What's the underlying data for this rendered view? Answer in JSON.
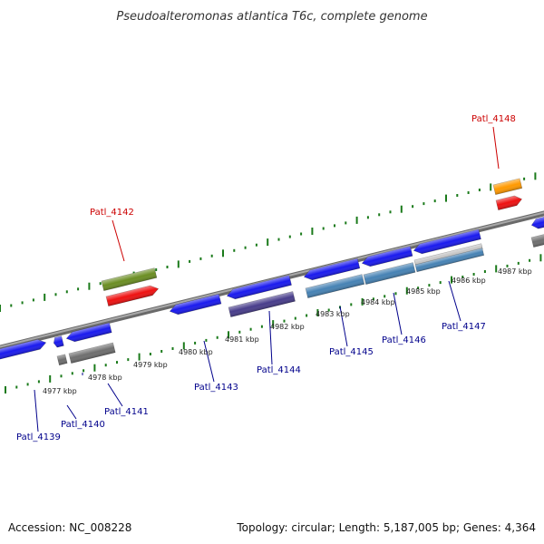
{
  "header": {
    "title": "Pseudoalteromonas atlantica T6c, complete genome"
  },
  "footer": {
    "accession": "Accession: NC_008228",
    "summary": "Topology: circular; Length: 5,187,005 bp; Genes: 4,364"
  },
  "colors": {
    "backbone": "#808080",
    "ticks": "#1a7a1a",
    "gene_blue": "#1a1aee",
    "gene_red": "#ee1111",
    "gene_olive": "#6b8e23",
    "gene_orange": "#ff9900",
    "gene_gray": "#6e6e6e",
    "gene_steel": "#4682b4",
    "gene_slate": "#483d8b",
    "gene_silver": "#c8c8c8",
    "label_blue": "#00008b",
    "label_red": "#cc0000"
  },
  "scale": {
    "unit": "kbp",
    "ticks": [
      {
        "label": "4977 kbp"
      },
      {
        "label": "4978 kbp"
      },
      {
        "label": "4979 kbp"
      },
      {
        "label": "4980 kbp"
      },
      {
        "label": "4981 kbp"
      },
      {
        "label": "4982 kbp"
      },
      {
        "label": "4983 kbp"
      },
      {
        "label": "4984 kbp"
      },
      {
        "label": "4985 kbp"
      },
      {
        "label": "4986 kbp"
      },
      {
        "label": "4987 kbp"
      }
    ]
  },
  "gene_labels": [
    {
      "text": "Patl_4139",
      "color": "label_blue"
    },
    {
      "text": "Patl_4140",
      "color": "label_blue"
    },
    {
      "text": "Patl_4141",
      "color": "label_blue"
    },
    {
      "text": "Patl_4142",
      "color": "label_red"
    },
    {
      "text": "Patl_4143",
      "color": "label_blue"
    },
    {
      "text": "Patl_4144",
      "color": "label_blue"
    },
    {
      "text": "Patl_4145",
      "color": "label_blue"
    },
    {
      "text": "Patl_4146",
      "color": "label_blue"
    },
    {
      "text": "Patl_4147",
      "color": "label_blue"
    },
    {
      "text": "Patl_4148",
      "color": "label_red"
    }
  ]
}
